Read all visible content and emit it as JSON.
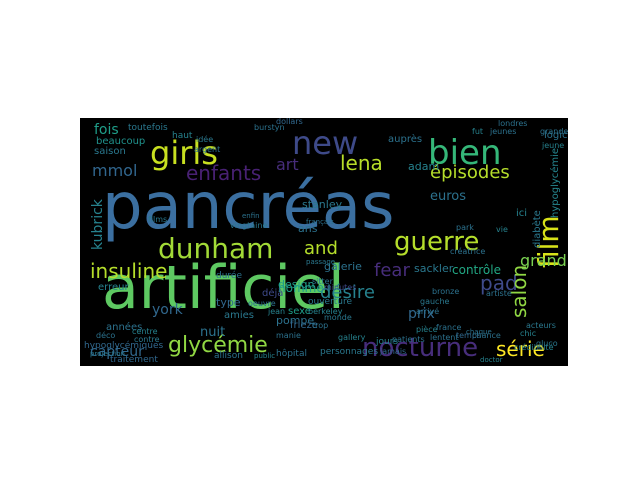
{
  "wordcloud": {
    "background": "#000000",
    "words": [
      {
        "text": "pancréas",
        "color": "#3b6fa0"
      },
      {
        "text": "artificiel",
        "color": "#5ec962"
      },
      {
        "text": "new",
        "color": "#3e4a89"
      },
      {
        "text": "bien",
        "color": "#35b779"
      },
      {
        "text": "girls",
        "color": "#c8e020"
      },
      {
        "text": "dunham",
        "color": "#a2da37"
      },
      {
        "text": "film",
        "color": "#d8e219"
      },
      {
        "text": "glycémie",
        "color": "#90d743"
      },
      {
        "text": "nocturne",
        "color": "#472d7b"
      },
      {
        "text": "insuline",
        "color": "#b5de2b"
      },
      {
        "text": "guerre",
        "color": "#b5de2b"
      },
      {
        "text": "enfants",
        "color": "#482173"
      },
      {
        "text": "lena",
        "color": "#b8de29"
      },
      {
        "text": "mmol",
        "color": "#31668e"
      },
      {
        "text": "épisodes",
        "color": "#b5de2b"
      },
      {
        "text": "fear",
        "color": "#472d7b"
      },
      {
        "text": "pad",
        "color": "#3e4a89"
      },
      {
        "text": "and",
        "color": "#b5de2b"
      },
      {
        "text": "désire",
        "color": "#26828e"
      },
      {
        "text": "série",
        "color": "#fde725"
      },
      {
        "text": "capteur",
        "color": "#31688e"
      },
      {
        "text": "salon",
        "color": "#90d743"
      },
      {
        "text": "grand",
        "color": "#7ad151"
      },
      {
        "text": "art",
        "color": "#472d7b"
      },
      {
        "text": "fois",
        "color": "#1f9e89"
      },
      {
        "text": "kubrick",
        "color": "#26828e"
      },
      {
        "text": "york",
        "color": "#31688e"
      },
      {
        "text": "nuit",
        "color": "#2c728e"
      },
      {
        "text": "prix",
        "color": "#31688e"
      },
      {
        "text": "euros",
        "color": "#2c728e"
      },
      {
        "text": "adam",
        "color": "#26828e"
      },
      {
        "text": "stanley",
        "color": "#2a788e"
      },
      {
        "text": "ans",
        "color": "#2c728e"
      },
      {
        "text": "homme",
        "color": "#1f9e89"
      },
      {
        "text": "sackler",
        "color": "#2a788e"
      },
      {
        "text": "contrôle",
        "color": "#22a884"
      },
      {
        "text": "galerie",
        "color": "#2c728e"
      },
      {
        "text": "diabète",
        "color": "#2a788e"
      },
      {
        "text": "hypoglycémie",
        "color": "#25858e"
      },
      {
        "text": "beaucoup",
        "color": "#20928c"
      },
      {
        "text": "saison",
        "color": "#2a788e"
      },
      {
        "text": "erreur",
        "color": "#26828e"
      },
      {
        "text": "années",
        "color": "#2c728e"
      },
      {
        "text": "type",
        "color": "#31688e"
      },
      {
        "text": "amies",
        "color": "#2a788e"
      },
      {
        "text": "pompe",
        "color": "#2c728e"
      },
      {
        "text": "design",
        "color": "#1f9e89"
      },
      {
        "text": "sexe",
        "color": "#1f9e89"
      },
      {
        "text": "frieze",
        "color": "#31688e"
      },
      {
        "text": "déjà",
        "color": "#3e4a89"
      },
      {
        "text": "ici",
        "color": "#26828e"
      },
      {
        "text": "auprès",
        "color": "#2c728e"
      },
      {
        "text": "logic",
        "color": "#2c728e"
      },
      {
        "text": "hypoglycémiques",
        "color": "#31688e"
      },
      {
        "text": "personnages",
        "color": "#2a788e"
      },
      {
        "text": "hôpital",
        "color": "#2c728e"
      },
      {
        "text": "traitement",
        "color": "#31688e"
      },
      {
        "text": "allison",
        "color": "#2c728e"
      },
      {
        "text": "jours",
        "color": "#26828e"
      },
      {
        "text": "toutefois",
        "color": "#2a788e"
      },
      {
        "text": "haut",
        "color": "#26828e"
      },
      {
        "text": "durée",
        "color": "#2c728e"
      },
      {
        "text": "films",
        "color": "#2a788e"
      },
      {
        "text": "lentent",
        "color": "#2c728e"
      },
      {
        "text": "pièce",
        "color": "#26828e"
      },
      {
        "text": "temps",
        "color": "#31688e"
      },
      {
        "text": "chance",
        "color": "#2c728e"
      },
      {
        "text": "crédibilité",
        "color": "#26828e"
      },
      {
        "text": "berkeley",
        "color": "#26828e"
      },
      {
        "text": "monde",
        "color": "#2a788e"
      },
      {
        "text": "vingtaine",
        "color": "#2a788e"
      },
      {
        "text": "oeuvre",
        "color": "#2c728e"
      },
      {
        "text": "ouverture",
        "color": "#2a788e"
      },
      {
        "text": "sitter",
        "color": "#2c728e"
      },
      {
        "text": "minutes",
        "color": "#3e4a89"
      },
      {
        "text": "trop",
        "color": "#2c728e"
      },
      {
        "text": "gluco",
        "color": "#2a788e"
      },
      {
        "text": "bronze",
        "color": "#2c728e"
      },
      {
        "text": "grande",
        "color": "#2c728e"
      },
      {
        "text": "jeune",
        "color": "#26828e"
      },
      {
        "text": "londres",
        "color": "#2c728e"
      },
      {
        "text": "acteurs",
        "color": "#2a788e"
      },
      {
        "text": "artiste",
        "color": "#2c728e"
      },
      {
        "text": "park",
        "color": "#2c728e"
      },
      {
        "text": "contre",
        "color": "#2a788e"
      },
      {
        "text": "centre",
        "color": "#26828e"
      },
      {
        "text": "arrivé",
        "color": "#2c728e"
      },
      {
        "text": "gallery",
        "color": "#26828e"
      },
      {
        "text": "france",
        "color": "#2c728e"
      },
      {
        "text": "chic",
        "color": "#26828e"
      },
      {
        "text": "jamais",
        "color": "#31688e"
      },
      {
        "text": "manie",
        "color": "#2c728e"
      },
      {
        "text": "patients",
        "color": "#2c728e"
      },
      {
        "text": "jean",
        "color": "#26828e"
      },
      {
        "text": "gauche",
        "color": "#2a788e"
      },
      {
        "text": "créatrice",
        "color": "#2c728e"
      },
      {
        "text": "fut",
        "color": "#26828e"
      },
      {
        "text": "jeunes",
        "color": "#2c728e"
      },
      {
        "text": "vie",
        "color": "#26828e"
      },
      {
        "text": "déco",
        "color": "#2c728e"
      },
      {
        "text": "idée",
        "color": "#2a788e"
      },
      {
        "text": "burstyn",
        "color": "#2c728e"
      },
      {
        "text": "dollars",
        "color": "#31688e"
      },
      {
        "text": "argent",
        "color": "#2c728e"
      },
      {
        "text": "projection",
        "color": "#2a788e"
      },
      {
        "text": "chaque",
        "color": "#2c728e"
      },
      {
        "text": "public",
        "color": "#26828e"
      },
      {
        "text": "enfin",
        "color": "#2c728e"
      },
      {
        "text": "passage",
        "color": "#2a788e"
      },
      {
        "text": "français",
        "color": "#2c728e"
      },
      {
        "text": "doctor",
        "color": "#26828e"
      }
    ]
  }
}
